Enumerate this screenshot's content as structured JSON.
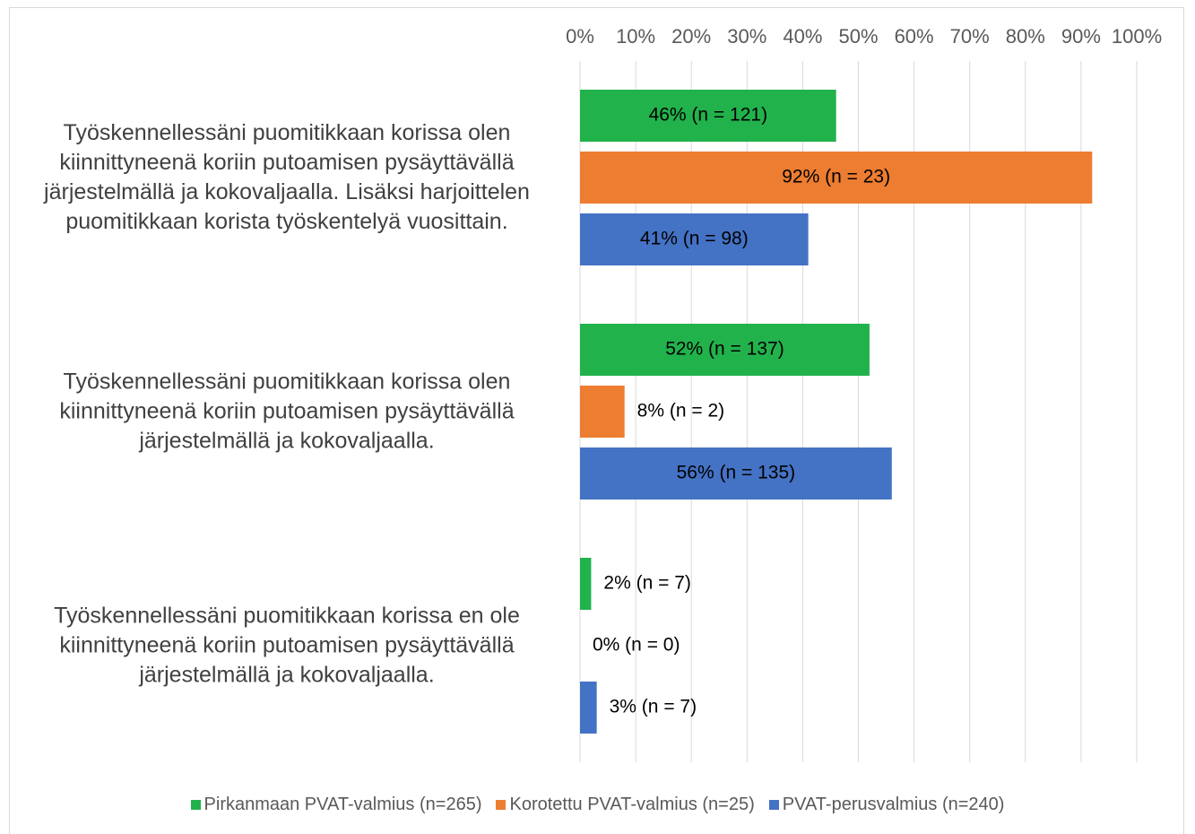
{
  "chart_data": {
    "type": "hbar",
    "categories": [
      "Työskennellessäni puomitikkaan korissa olen kiinnittyneenä koriin putoamisen pysäyttävällä järjestelmällä ja kokovaljaalla. Lisäksi harjoittelen puomitikkaan korista työskentelyä vuosittain.",
      "Työskennellessäni puomitikkaan korissa olen kiinnittyneenä koriin putoamisen pysäyttävällä järjestelmällä ja kokovaljaalla.",
      "Työskennellessäni puomitikkaan korissa en ole kiinnittyneenä koriin putoamisen pysäyttävällä järjestelmällä ja kokovaljaalla."
    ],
    "series": [
      {
        "name": "Pirkanmaan PVAT-valmius (n=265)",
        "color": "#22b24c",
        "values": [
          46,
          52,
          2
        ],
        "value_labels": [
          "46% (n = 121)",
          "52% (n = 137)",
          "2% (n = 7)"
        ]
      },
      {
        "name": "Korotettu PVAT-valmius (n=25)",
        "color": "#ed7d31",
        "values": [
          92,
          8,
          0
        ],
        "value_labels": [
          "92% (n = 23)",
          "8% (n = 2)",
          "0% (n = 0)"
        ]
      },
      {
        "name": "PVAT-perusvalmius (n=240)",
        "color": "#4472c4",
        "values": [
          41,
          56,
          3
        ],
        "value_labels": [
          "41% (n = 98)",
          "56% (n = 135)",
          "3% (n = 7)"
        ]
      }
    ],
    "xlim": [
      0,
      100
    ],
    "xticks": [
      {
        "value": 0,
        "label": "0%"
      },
      {
        "value": 10,
        "label": "10%"
      },
      {
        "value": 20,
        "label": "20%"
      },
      {
        "value": 30,
        "label": "30%"
      },
      {
        "value": 40,
        "label": "40%"
      },
      {
        "value": 50,
        "label": "50%"
      },
      {
        "value": 60,
        "label": "60%"
      },
      {
        "value": 70,
        "label": "70%"
      },
      {
        "value": 80,
        "label": "80%"
      },
      {
        "value": 90,
        "label": "90%"
      },
      {
        "value": 100,
        "label": "100%"
      }
    ],
    "grid": true,
    "legend": "bottom"
  }
}
